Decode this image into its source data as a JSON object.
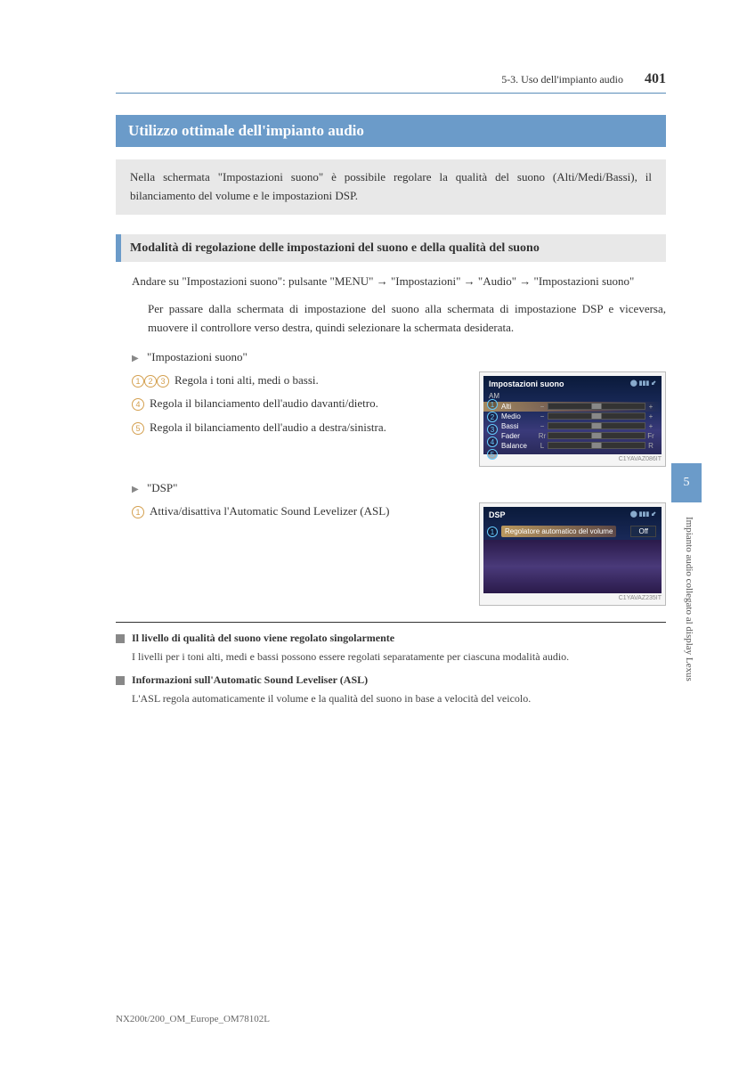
{
  "header": {
    "breadcrumb": "5-3. Uso dell'impianto audio",
    "page_number": "401"
  },
  "side": {
    "tab": "5",
    "label": "Impianto audio collegato al display Lexus"
  },
  "title": "Utilizzo ottimale dell'impianto audio",
  "intro": "Nella schermata \"Impostazioni suono\" è possibile regolare la qualità del suono (Alti/Medi/Bassi), il bilanciamento del volume e le impostazioni DSP.",
  "subsection": "Modalità di regolazione delle impostazioni del suono e della qualità del suono",
  "nav_text_1": "Andare su \"Impostazioni suono\": pulsante \"MENU\" → \"Impostazioni\" → \"Audio\" → \"Impostazioni suono\"",
  "indent_1": "Per passare dalla schermata di impostazione del suono alla schermata di impostazione DSP e viceversa, muovere il controllore verso destra, quindi selezionare la schermata desiderata.",
  "bullet_1": "\"Impostazioni suono\"",
  "items_1": [
    {
      "nums": [
        "1",
        "2",
        "3"
      ],
      "text": "Regola i toni alti, medi o bassi."
    },
    {
      "nums": [
        "4"
      ],
      "text": "Regola il bilanciamento dell'audio davanti/dietro."
    },
    {
      "nums": [
        "5"
      ],
      "text": "Regola il bilanciamento dell'audio a destra/sinistra."
    }
  ],
  "screen1": {
    "title": "Impostazioni suono",
    "sub": "AM",
    "status": "⬤ ▮▮▮ ⬋",
    "rows": [
      {
        "n": "1",
        "label": "Alti",
        "l": "−",
        "r": "+",
        "hl": true
      },
      {
        "n": "2",
        "label": "Medio",
        "l": "−",
        "r": "+"
      },
      {
        "n": "3",
        "label": "Bassi",
        "l": "−",
        "r": "+"
      },
      {
        "n": "4",
        "label": "Fader",
        "l": "Rr",
        "r": "Fr"
      },
      {
        "n": "5",
        "label": "Balance",
        "l": "L",
        "r": "R"
      }
    ],
    "caption": "C1YAVAZ086IT"
  },
  "bullet_2": "\"DSP\"",
  "items_2": [
    {
      "nums": [
        "1"
      ],
      "text": "Attiva/disattiva l'Automatic Sound Levelizer (ASL)"
    }
  ],
  "screen2": {
    "title": "DSP",
    "status": "⬤ ▮▮▮ ⬋",
    "row_label": "Regolatore automatico del volume",
    "row_value": "Off",
    "num": "1",
    "caption": "C1YAVAZ235IT"
  },
  "notes": [
    {
      "title": "Il livello di qualità del suono viene regolato singolarmente",
      "body": "I livelli per i toni alti, medi e bassi possono essere regolati separatamente per ciascuna modalità audio."
    },
    {
      "title": "Informazioni sull'Automatic Sound Leveliser (ASL)",
      "body": "L'ASL regola automaticamente il volume e la qualità del suono in base a velocità del veicolo."
    }
  ],
  "footer": "NX200t/200_OM_Europe_OM78102L"
}
